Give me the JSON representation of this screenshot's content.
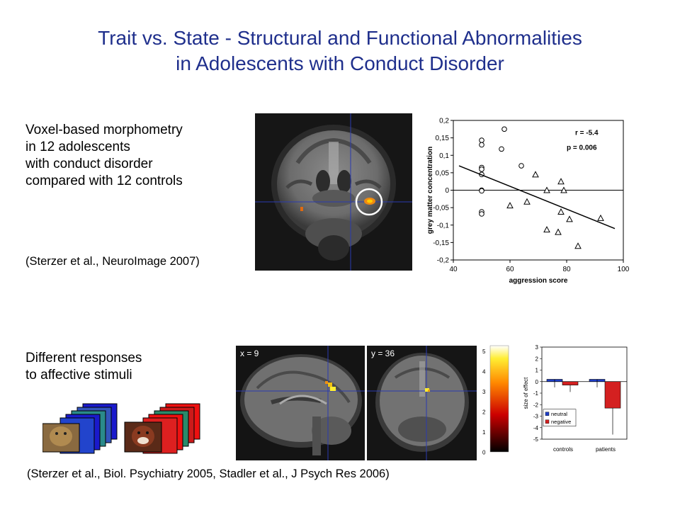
{
  "title": {
    "line1": "Trait vs. State - Structural and Functional Abnormalities",
    "line2": "in Adolescents with Conduct Disorder"
  },
  "vbm": {
    "lines": [
      "Voxel-based morphometry",
      "in 12 adolescents",
      "with conduct disorder",
      "compared with 12 controls"
    ],
    "citation": "(Sterzer et al., NeuroImage 2007)"
  },
  "affective": {
    "lines": [
      "Different responses",
      "to affective stimuli"
    ],
    "citation": "(Sterzer et al., Biol. Psychiatry 2005, Stadler et al., J Psych Res 2006)"
  },
  "brain_labels": {
    "sagittal": "x = 9",
    "coronal": "y = 36"
  },
  "colorbar": {
    "ticks": [
      "5",
      "4",
      "3",
      "2",
      "1",
      "0"
    ]
  },
  "colors": {
    "title": "#1f2f8c",
    "neutral": "#1f3fc8",
    "negative": "#d42020",
    "crosshair": "#2a3ab0"
  },
  "chart_data": [
    {
      "type": "scatter",
      "xlabel": "aggression score",
      "ylabel": "grey matter concentration",
      "xlim": [
        40,
        100
      ],
      "ylim": [
        -0.2,
        0.2
      ],
      "xticks": [
        "40",
        "60",
        "80",
        "100"
      ],
      "yticks": [
        "0,2",
        "0,15",
        "0,1",
        "0,05",
        "0",
        "-0,05",
        "-0,1",
        "-0,15",
        "-0,2"
      ],
      "annotations": [
        "r = -5.4",
        "p = 0.006"
      ],
      "series": [
        {
          "marker": "circle",
          "points": [
            [
              58,
              0.175
            ],
            [
              50,
              0.143
            ],
            [
              50,
              0.13
            ],
            [
              57,
              0.118
            ],
            [
              50,
              0.065
            ],
            [
              50,
              0.06
            ],
            [
              50,
              0.045
            ],
            [
              64,
              0.07
            ],
            [
              50,
              0.0
            ],
            [
              50,
              -0.002
            ],
            [
              50,
              -0.062
            ],
            [
              50,
              -0.068
            ]
          ]
        },
        {
          "marker": "triangle",
          "points": [
            [
              69,
              0.045
            ],
            [
              78,
              0.025
            ],
            [
              73,
              0.0
            ],
            [
              79,
              0.0
            ],
            [
              66,
              -0.033
            ],
            [
              60,
              -0.044
            ],
            [
              78,
              -0.062
            ],
            [
              81,
              -0.083
            ],
            [
              92,
              -0.08
            ],
            [
              73,
              -0.113
            ],
            [
              77,
              -0.12
            ],
            [
              84,
              -0.16
            ]
          ]
        }
      ],
      "trendline": {
        "from": [
          42,
          0.07
        ],
        "to": [
          97,
          -0.11
        ]
      }
    },
    {
      "type": "bar",
      "ylabel": "size of effect",
      "ylim": [
        -5,
        3
      ],
      "yticks": [
        "3",
        "2",
        "1",
        "0",
        "-1",
        "-2",
        "-3",
        "-4",
        "-5"
      ],
      "categories": [
        "controls",
        "patients"
      ],
      "series": [
        {
          "name": "neutral",
          "values": [
            0.2,
            0.2
          ],
          "errors": [
            0.7,
            0.7
          ]
        },
        {
          "name": "negative",
          "values": [
            -0.3,
            -2.3
          ],
          "errors": [
            0.6,
            2.3
          ]
        }
      ]
    }
  ]
}
